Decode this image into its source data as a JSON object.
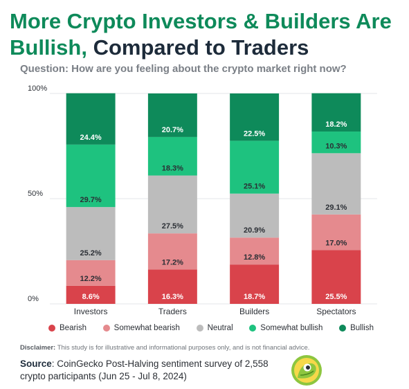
{
  "header": {
    "title_accent": "More Crypto Investors & Builders Are Bullish,",
    "title_rest": "Compared to Traders",
    "question": "Question: How are you feeling about the crypto market right now?"
  },
  "colors": {
    "bearish": "#d9434b",
    "somewhat_bearish": "#e58a8e",
    "neutral": "#bcbcbc",
    "somewhat_bullish": "#1ec27f",
    "bullish": "#0e8a5a",
    "title_accent": "#0e8a5a"
  },
  "chart_data": {
    "type": "bar",
    "stacked": true,
    "categories": [
      "Investors",
      "Traders",
      "Builders",
      "Spectators"
    ],
    "series": [
      {
        "name": "Bearish",
        "values": [
          8.6,
          16.3,
          18.7,
          25.5
        ],
        "labels": [
          "8.6%",
          "16.3%",
          "18.7%",
          "25.5%"
        ]
      },
      {
        "name": "Somewhat bearish",
        "values": [
          12.2,
          17.2,
          12.8,
          17.0
        ],
        "labels": [
          "12.2%",
          "17.2%",
          "12.8%",
          "17.0%"
        ]
      },
      {
        "name": "Neutral",
        "values": [
          25.2,
          27.5,
          20.9,
          29.1
        ],
        "labels": [
          "25.2%",
          "27.5%",
          "20.9%",
          "29.1%"
        ]
      },
      {
        "name": "Somewhat bullish",
        "values": [
          29.7,
          18.3,
          25.1,
          10.3
        ],
        "labels": [
          "29.7%",
          "18.3%",
          "25.1%",
          "10.3%"
        ]
      },
      {
        "name": "Bullish",
        "values": [
          24.4,
          20.7,
          22.5,
          18.2
        ],
        "labels": [
          "24.4%",
          "20.7%",
          "22.5%",
          "18.2%"
        ]
      }
    ],
    "yticks": [
      "0%",
      "50%",
      "100%"
    ],
    "ytick_values": [
      0,
      50,
      100
    ],
    "ylim": [
      0,
      100
    ],
    "grid": true,
    "legend_position": "bottom"
  },
  "legend": [
    {
      "label": "Bearish",
      "color": "#d9434b"
    },
    {
      "label": "Somewhat bearish",
      "color": "#e58a8e"
    },
    {
      "label": "Neutral",
      "color": "#bcbcbc"
    },
    {
      "label": "Somewhat bullish",
      "color": "#1ec27f"
    },
    {
      "label": "Bullish",
      "color": "#0e8a5a"
    }
  ],
  "footer": {
    "disclaimer_label": "Disclaimer:",
    "disclaimer_text": "This study is for illustrative and informational purposes only, and is not financial advice.",
    "source_label": "Source",
    "source_text": ": CoinGecko Post-Halving sentiment survey of 2,558 crypto participants (Jun 25 - Jul 8, 2024)"
  }
}
